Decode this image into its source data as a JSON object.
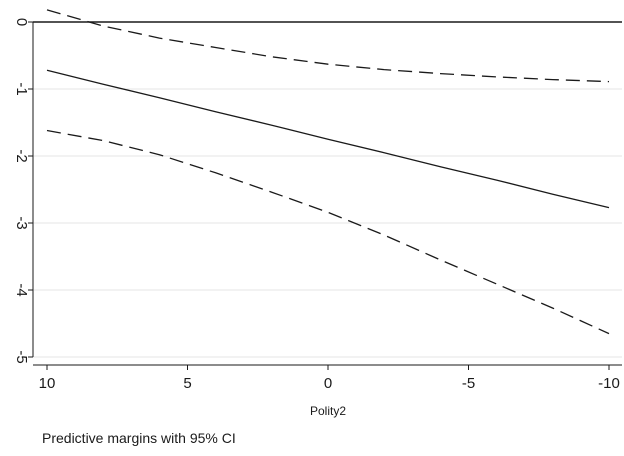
{
  "chart_data": {
    "type": "line",
    "title": "",
    "caption": "Predictive margins with 95% CI",
    "xlabel": "Polity2",
    "ylabel": "",
    "x_reversed": true,
    "xlim": [
      10,
      -10
    ],
    "ylim": [
      -5,
      0
    ],
    "x_ticks": [
      10,
      5,
      0,
      -5,
      -10
    ],
    "x_tick_labels": [
      "10",
      "5",
      "0",
      "-5",
      "-10"
    ],
    "y_ticks": [
      0,
      -1,
      -2,
      -3,
      -4,
      -5
    ],
    "y_tick_labels": [
      "0",
      "-1",
      "-2",
      "-3",
      "-4",
      "-5"
    ],
    "grid": "horizontal",
    "reference_line_y": 0,
    "x": [
      10,
      8,
      6,
      4,
      2,
      0,
      -2,
      -4,
      -6,
      -8,
      -10
    ],
    "series": [
      {
        "style": "upper-ci",
        "dash": true,
        "values": [
          0.18,
          -0.06,
          -0.24,
          -0.38,
          -0.52,
          -0.63,
          -0.71,
          -0.77,
          -0.82,
          -0.86,
          -0.89
        ]
      },
      {
        "style": "estimate",
        "dash": false,
        "values": [
          -0.72,
          -0.93,
          -1.13,
          -1.34,
          -1.54,
          -1.75,
          -1.95,
          -2.16,
          -2.36,
          -2.57,
          -2.77
        ]
      },
      {
        "style": "lower-ci",
        "dash": true,
        "values": [
          -1.62,
          -1.77,
          -1.98,
          -2.25,
          -2.54,
          -2.84,
          -3.18,
          -3.55,
          -3.91,
          -4.27,
          -4.65
        ]
      }
    ],
    "colors": {
      "line": "#1a1a1a",
      "grid": "#e6e6e6",
      "axis": "#1a1a1a"
    }
  }
}
